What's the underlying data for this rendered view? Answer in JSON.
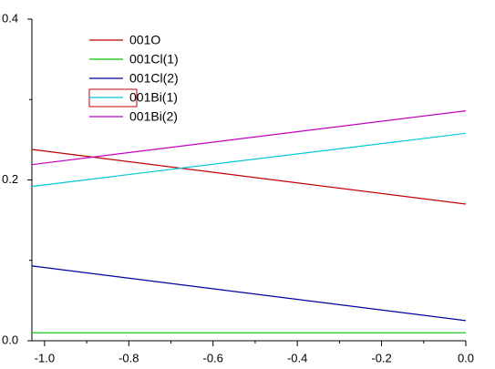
{
  "chart_data": {
    "type": "line",
    "x": [
      -1.03,
      0
    ],
    "series": [
      {
        "name": "001O",
        "color": "#c00000",
        "values": [
          0.238,
          0.17
        ]
      },
      {
        "name": "001Cl(1)",
        "color": "#00c000",
        "values": [
          0.01,
          0.01
        ]
      },
      {
        "name": "001Cl(2)",
        "color": "#0000a0",
        "values": [
          0.093,
          0.025
        ]
      },
      {
        "name": "001Bi(1)",
        "color": "#00c8d8",
        "values": [
          0.192,
          0.258
        ]
      },
      {
        "name": "001Bi(2)",
        "color": "#c000c0",
        "values": [
          0.219,
          0.286
        ]
      }
    ],
    "xlim": [
      -1.03,
      0
    ],
    "xticks": [
      {
        "value": -1,
        "label": "-1.0"
      },
      -0.8,
      -0.6,
      -0.4,
      -0.2,
      {
        "value": 0,
        "label": "0.0"
      }
    ],
    "xminor_ticks": [
      -0.9,
      -0.7,
      -0.5,
      -0.3,
      -0.1
    ],
    "ylim": [
      0,
      0.4
    ],
    "yticks": [
      {
        "value": 0,
        "label": "0.0"
      },
      0.2,
      0.4
    ],
    "yminor_ticks": [
      0.1,
      0.3
    ],
    "legend": "upper left"
  }
}
